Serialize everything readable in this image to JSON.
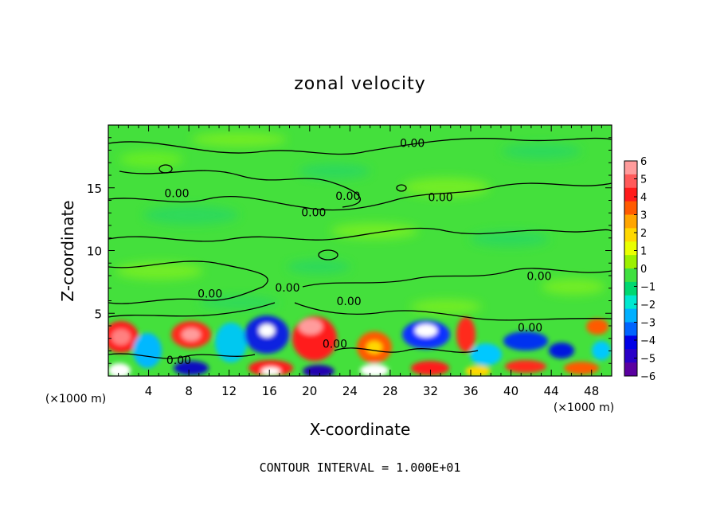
{
  "chart_data": {
    "type": "heatmap",
    "title": "zonal velocity",
    "xlabel": "X-coordinate",
    "ylabel": "Z-coordinate",
    "x_unit_left": "(×1000 m)",
    "x_unit_right": "(×1000 m)",
    "xlim": [
      0,
      50
    ],
    "ylim": [
      0,
      20
    ],
    "x_ticks": [
      4,
      8,
      12,
      16,
      20,
      24,
      28,
      32,
      36,
      40,
      44,
      48
    ],
    "y_ticks": [
      5,
      10,
      15
    ],
    "colorbar": {
      "min": -6,
      "max": 6,
      "ticks": [
        "6",
        "5",
        "4",
        "3",
        "2",
        "1",
        "0",
        "−1",
        "−2",
        "−3",
        "−4",
        "−5",
        "−6"
      ],
      "colors": [
        "#ff9c9c",
        "#ff5a5a",
        "#ff1a1a",
        "#ff5a00",
        "#ffa500",
        "#ffd800",
        "#eaff00",
        "#9cf000",
        "#40e040",
        "#00d870",
        "#00e8d0",
        "#00b0ff",
        "#0064ff",
        "#0000e6",
        "#2a00c8",
        "#5a00a0"
      ]
    },
    "contour_labels": [
      {
        "text": "0.00",
        "x": 30.2,
        "z": 18.5
      },
      {
        "text": "0.00",
        "x": 6.8,
        "z": 14.5
      },
      {
        "text": "0.00",
        "x": 23.8,
        "z": 14.3
      },
      {
        "text": "0.00",
        "x": 20.4,
        "z": 13.0
      },
      {
        "text": "0.00",
        "x": 33.0,
        "z": 14.2
      },
      {
        "text": "0.00",
        "x": 42.8,
        "z": 7.9
      },
      {
        "text": "0.00",
        "x": 17.8,
        "z": 7.0
      },
      {
        "text": "0.00",
        "x": 10.1,
        "z": 6.5
      },
      {
        "text": "0.00",
        "x": 23.9,
        "z": 5.9
      },
      {
        "text": "0.00",
        "x": 41.9,
        "z": 3.8
      },
      {
        "text": "0.00",
        "x": 22.5,
        "z": 2.5
      },
      {
        "text": "0.00",
        "x": 7.0,
        "z": 1.2
      }
    ],
    "footer": "CONTOUR INTERVAL = 1.000E+01"
  }
}
